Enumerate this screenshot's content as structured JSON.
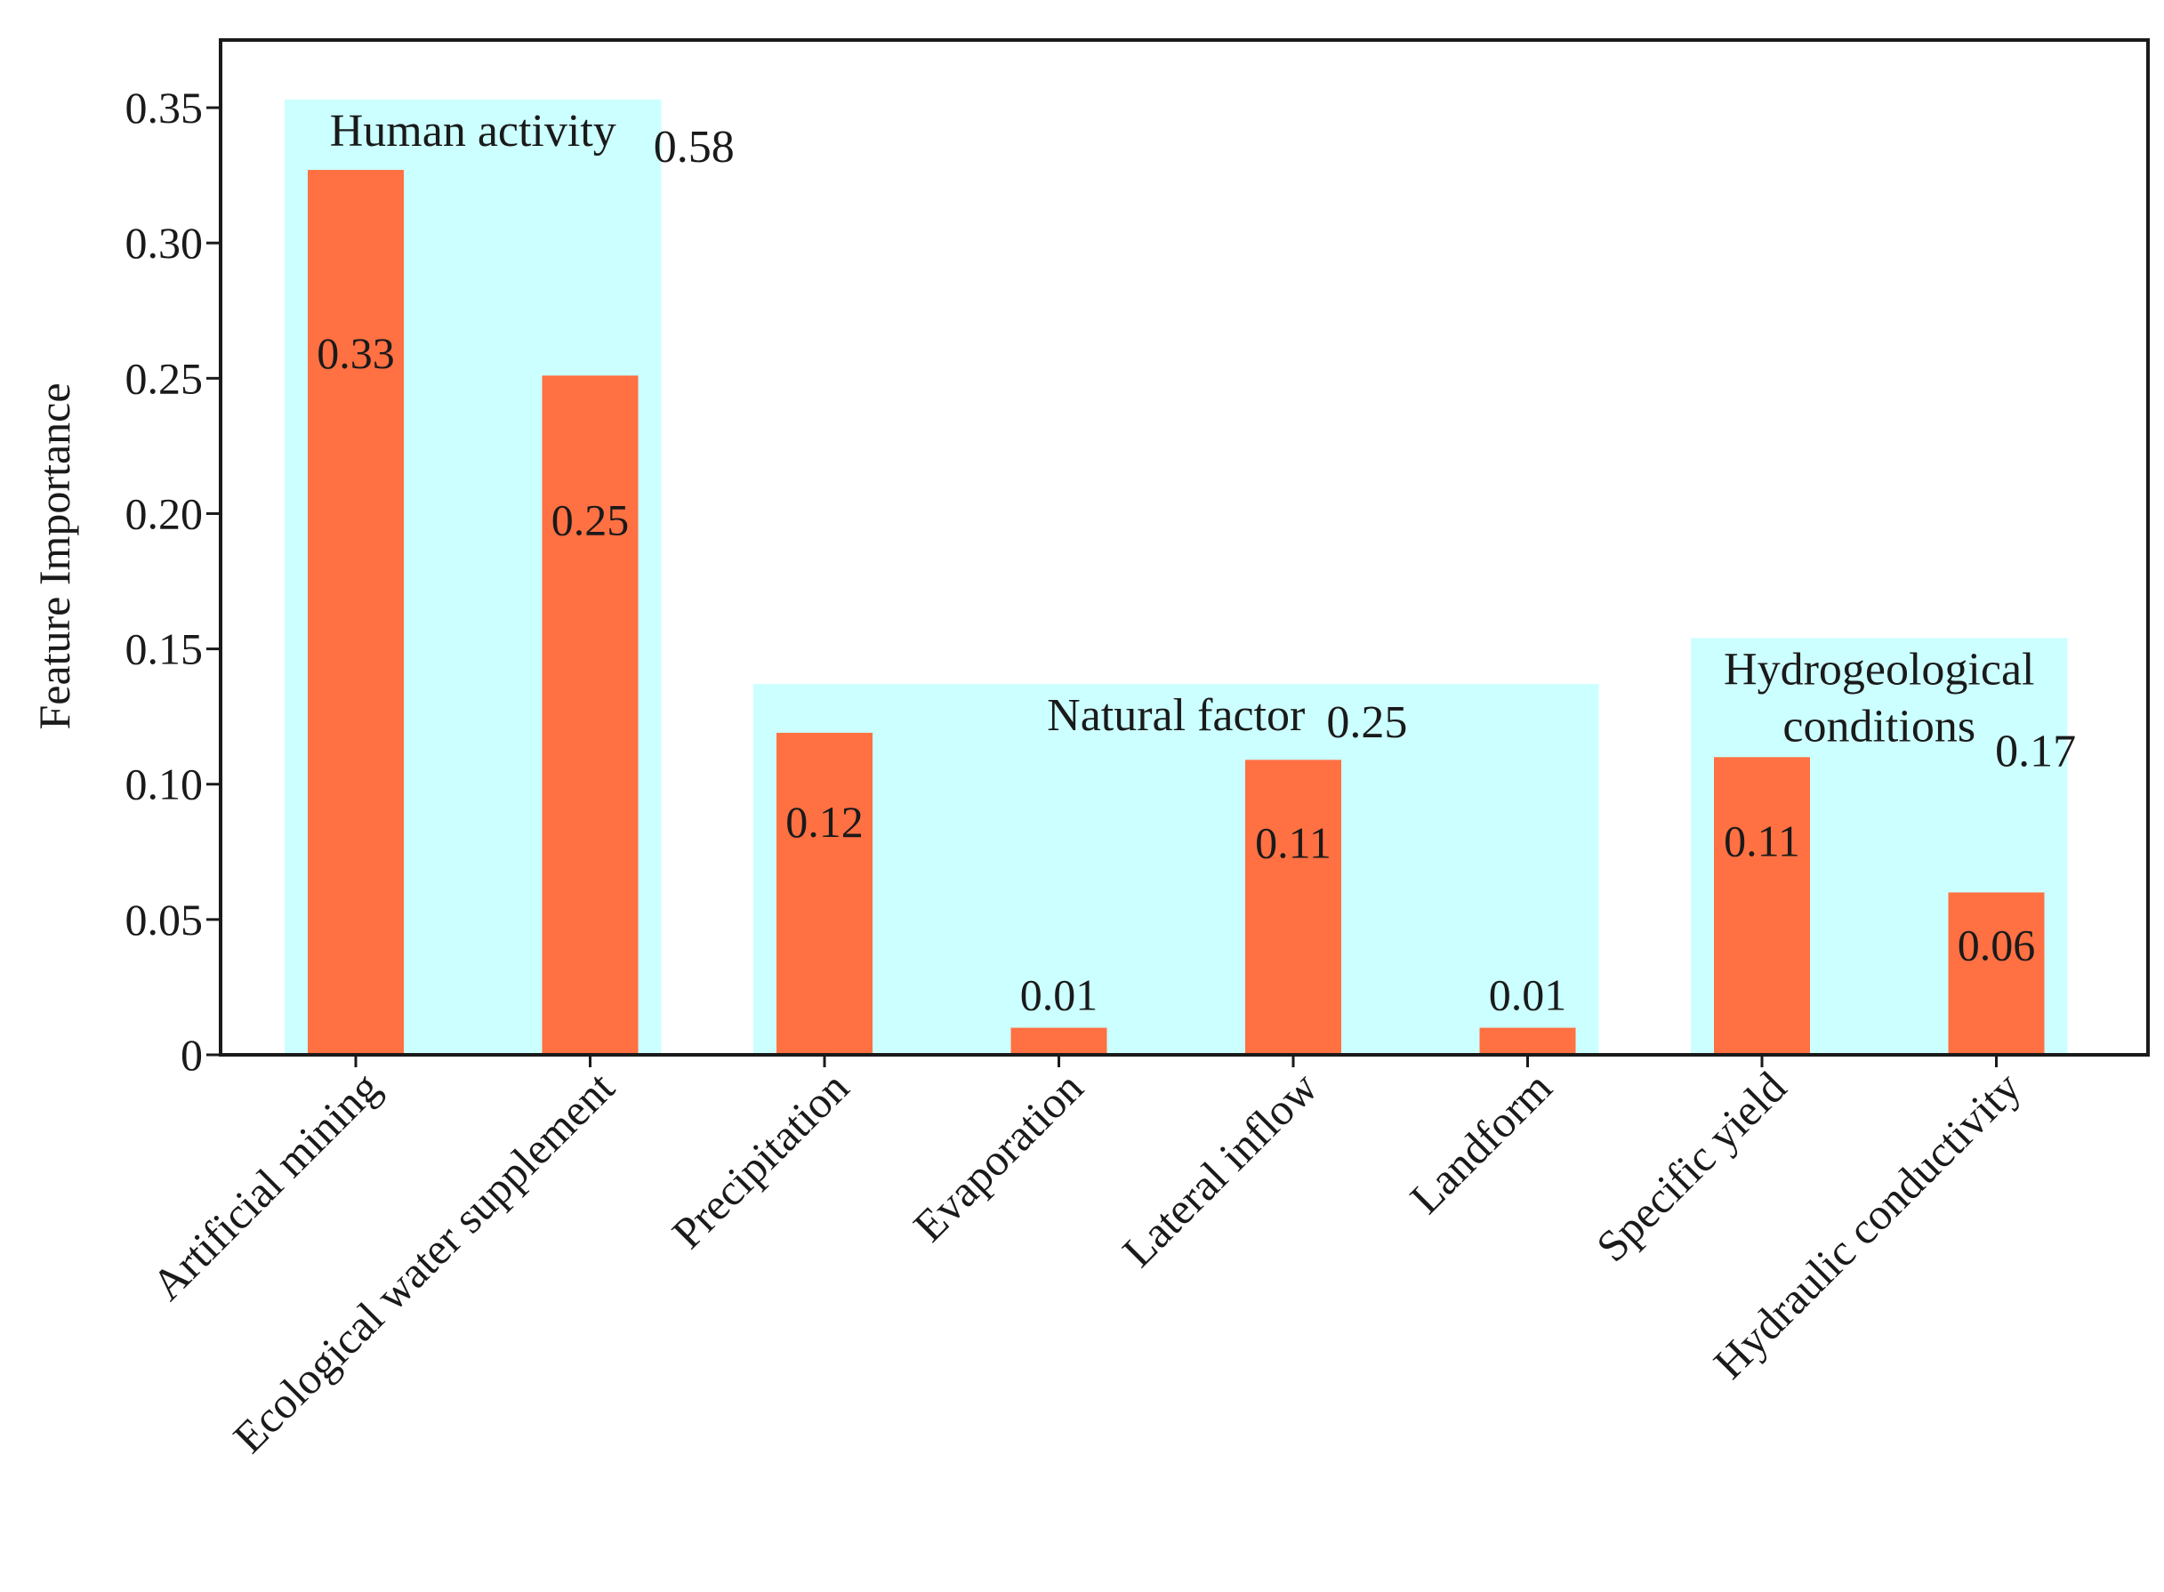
{
  "chart_data": {
    "type": "bar",
    "ylabel": "Feature Importance",
    "xlabel": "",
    "ylim": [
      0,
      0.375
    ],
    "yticks": [
      {
        "value": 0,
        "label": "0"
      },
      {
        "value": 0.05,
        "label": "0.05"
      },
      {
        "value": 0.1,
        "label": "0.10"
      },
      {
        "value": 0.15,
        "label": "0.15"
      },
      {
        "value": 0.2,
        "label": "0.20"
      },
      {
        "value": 0.25,
        "label": "0.25"
      },
      {
        "value": 0.3,
        "label": "0.30"
      },
      {
        "value": 0.35,
        "label": "0.35"
      }
    ],
    "categories": [
      "Artificial mining",
      "Ecological water supplement",
      "Precipitation",
      "Evaporation",
      "Lateral inflow",
      "Landform",
      "Specific yield",
      "Hydraulic conductivity"
    ],
    "values": [
      0.327,
      0.251,
      0.119,
      0.01,
      0.109,
      0.01,
      0.11,
      0.06
    ],
    "data_labels": [
      "0.33",
      "0.25",
      "0.12",
      "0.01",
      "0.11",
      "0.01",
      "0.11",
      "0.06"
    ],
    "groups": [
      {
        "label_lines": [
          "Human activity"
        ],
        "total": "0.58",
        "from": 0,
        "to": 1,
        "top": 0.353
      },
      {
        "label_lines": [
          "Natural factor"
        ],
        "total": "0.25",
        "from": 2,
        "to": 5,
        "top": 0.137
      },
      {
        "label_lines": [
          "Hydrogeological",
          "conditions"
        ],
        "total": "0.17",
        "from": 6,
        "to": 7,
        "top": 0.154
      }
    ],
    "grid": false,
    "colors": {
      "bar": "#ff7043",
      "group_band": "#ccffff",
      "frame": "#1a1a1a"
    }
  }
}
